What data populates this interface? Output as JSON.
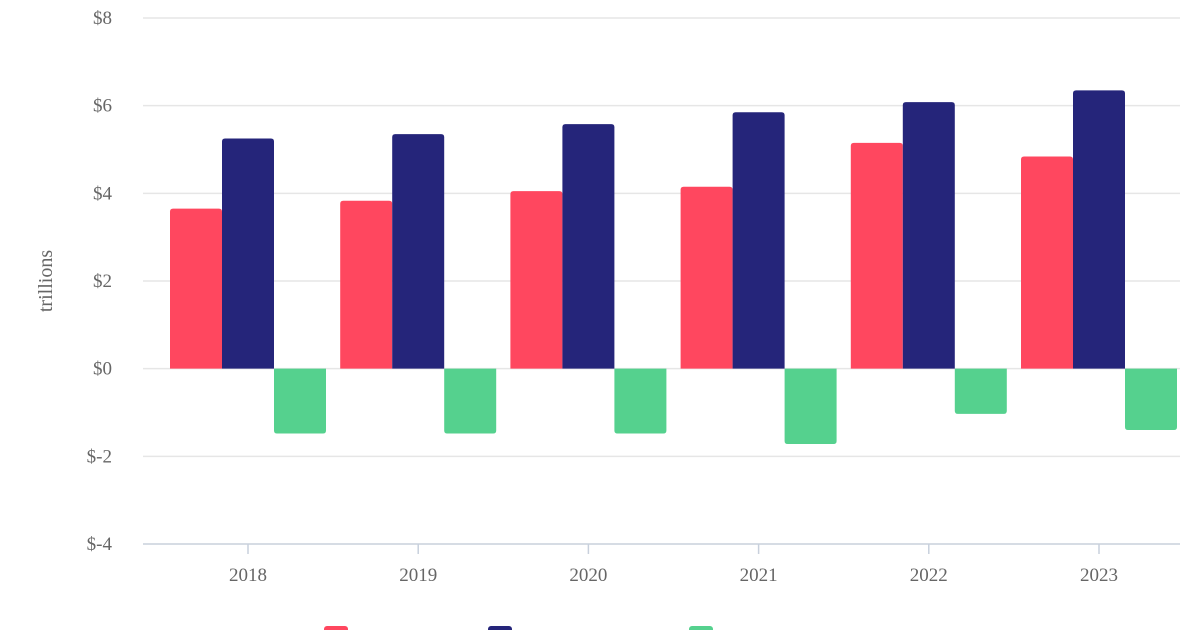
{
  "chart_data": {
    "type": "bar",
    "title": "",
    "xlabel": "",
    "ylabel": "trillions",
    "categories": [
      "2018",
      "2019",
      "2020",
      "2021",
      "2022",
      "2023"
    ],
    "ylim": [
      -4,
      8
    ],
    "yticks": [
      8,
      6,
      4,
      2,
      0,
      -2,
      -4
    ],
    "ytick_labels": [
      "$8",
      "$6",
      "$4",
      "$2",
      "$0",
      "$-2",
      "$-4"
    ],
    "grid": true,
    "legend_position": "bottom-center",
    "series": [
      {
        "values": [
          3.65,
          3.83,
          4.05,
          4.15,
          5.15,
          4.84
        ],
        "color": "#ff475f"
      },
      {
        "values": [
          5.25,
          5.35,
          5.58,
          5.85,
          6.08,
          6.35
        ],
        "color": "#25257a"
      },
      {
        "values": [
          -1.48,
          -1.48,
          -1.48,
          -1.72,
          -1.03,
          -1.4
        ],
        "color": "#55d18e"
      }
    ]
  }
}
